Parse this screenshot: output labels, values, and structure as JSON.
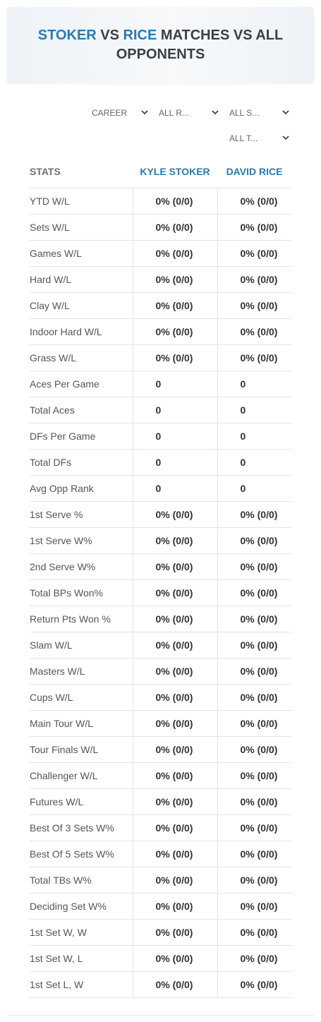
{
  "header": {
    "title": {
      "player1": "STOKER",
      "vs": "VS",
      "player2": "RICE",
      "rest": "MATCHES VS ALL OPPONENTS"
    }
  },
  "filters": [
    "CAREER",
    "ALL R...",
    "ALL S...",
    "ALL T..."
  ],
  "table": {
    "columns": [
      "STATS",
      "KYLE STOKER",
      "DAVID RICE"
    ],
    "rows": [
      [
        "YTD W/L",
        "0% (0/0)",
        "0% (0/0)"
      ],
      [
        "Sets W/L",
        "0% (0/0)",
        "0% (0/0)"
      ],
      [
        "Games W/L",
        "0% (0/0)",
        "0% (0/0)"
      ],
      [
        "Hard W/L",
        "0% (0/0)",
        "0% (0/0)"
      ],
      [
        "Clay W/L",
        "0% (0/0)",
        "0% (0/0)"
      ],
      [
        "Indoor Hard W/L",
        "0% (0/0)",
        "0% (0/0)"
      ],
      [
        "Grass W/L",
        "0% (0/0)",
        "0% (0/0)"
      ],
      [
        "Aces Per Game",
        "0",
        "0"
      ],
      [
        "Total Aces",
        "0",
        "0"
      ],
      [
        "DFs Per Game",
        "0",
        "0"
      ],
      [
        "Total DFs",
        "0",
        "0"
      ],
      [
        "Avg Opp Rank",
        "0",
        "0"
      ],
      [
        "1st Serve %",
        "0% (0/0)",
        "0% (0/0)"
      ],
      [
        "1st Serve W%",
        "0% (0/0)",
        "0% (0/0)"
      ],
      [
        "2nd Serve W%",
        "0% (0/0)",
        "0% (0/0)"
      ],
      [
        "Total BPs Won%",
        "0% (0/0)",
        "0% (0/0)"
      ],
      [
        "Return Pts Won %",
        "0% (0/0)",
        "0% (0/0)"
      ],
      [
        "Slam W/L",
        "0% (0/0)",
        "0% (0/0)"
      ],
      [
        "Masters W/L",
        "0% (0/0)",
        "0% (0/0)"
      ],
      [
        "Cups W/L",
        "0% (0/0)",
        "0% (0/0)"
      ],
      [
        "Main Tour W/L",
        "0% (0/0)",
        "0% (0/0)"
      ],
      [
        "Tour Finals W/L",
        "0% (0/0)",
        "0% (0/0)"
      ],
      [
        "Challenger W/L",
        "0% (0/0)",
        "0% (0/0)"
      ],
      [
        "Futures W/L",
        "0% (0/0)",
        "0% (0/0)"
      ],
      [
        "Best Of 3 Sets W%",
        "0% (0/0)",
        "0% (0/0)"
      ],
      [
        "Best Of 5 Sets W%",
        "0% (0/0)",
        "0% (0/0)"
      ],
      [
        "Total TBs W%",
        "0% (0/0)",
        "0% (0/0)"
      ],
      [
        "Deciding Set W%",
        "0% (0/0)",
        "0% (0/0)"
      ],
      [
        "1st Set W, W",
        "0% (0/0)",
        "0% (0/0)"
      ],
      [
        "1st Set W, L",
        "0% (0/0)",
        "0% (0/0)"
      ],
      [
        "1st Set L, W",
        "0% (0/0)",
        "0% (0/0)"
      ]
    ]
  }
}
